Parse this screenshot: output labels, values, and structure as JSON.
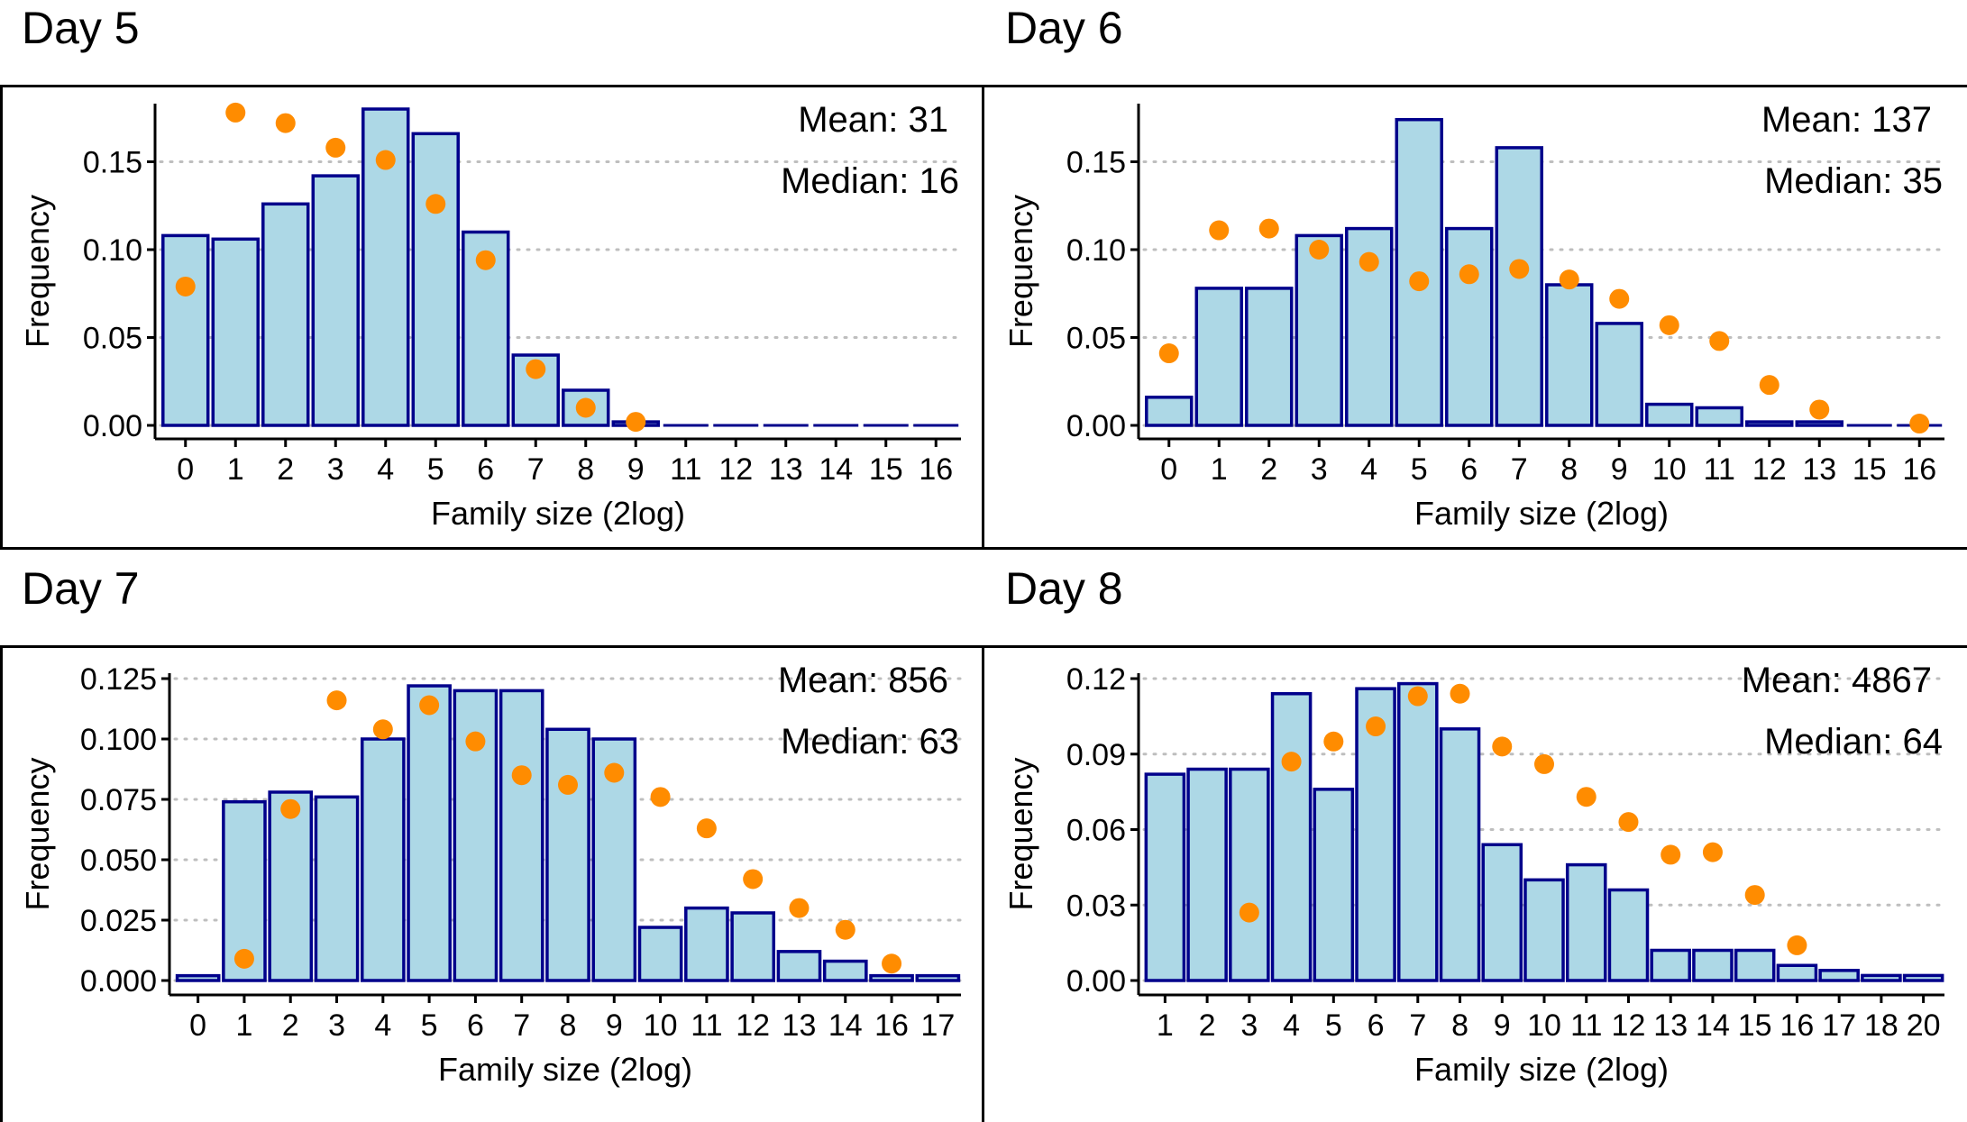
{
  "colors": {
    "bar_fill": "#add8e6",
    "bar_stroke": "#00008b",
    "point": "#ff8c00",
    "grid": "#bebebe",
    "frame": "#000000"
  },
  "chart_data": [
    {
      "type": "bar",
      "title": "Day 5",
      "xlabel": "Family size (2log)",
      "ylabel": "Frequency",
      "categories": [
        "0",
        "1",
        "2",
        "3",
        "4",
        "5",
        "6",
        "7",
        "8",
        "9",
        "11",
        "12",
        "13",
        "14",
        "15",
        "16"
      ],
      "series": [
        {
          "kind": "bar",
          "values": [
            0.108,
            0.106,
            0.126,
            0.142,
            0.18,
            0.166,
            0.11,
            0.04,
            0.02,
            0.002,
            0,
            0,
            0,
            0,
            0,
            0
          ]
        },
        {
          "kind": "point",
          "values": [
            0.079,
            0.178,
            0.172,
            0.158,
            0.151,
            0.126,
            0.094,
            0.032,
            0.01,
            0.002,
            null,
            null,
            null,
            null,
            null,
            null
          ]
        }
      ],
      "ylim": [
        0,
        0.18
      ],
      "yticks": [
        "0.00",
        "0.05",
        "0.10",
        "0.15"
      ],
      "ytick_values": [
        0,
        0.05,
        0.1,
        0.15
      ],
      "grid": true,
      "annotations": [
        "Mean: 31",
        "Median: 16"
      ]
    },
    {
      "type": "bar",
      "title": "Day 6",
      "xlabel": "Family size (2log)",
      "ylabel": "Frequency",
      "categories": [
        "0",
        "1",
        "2",
        "3",
        "4",
        "5",
        "6",
        "7",
        "8",
        "9",
        "10",
        "11",
        "12",
        "13",
        "15",
        "16"
      ],
      "series": [
        {
          "kind": "bar",
          "values": [
            0.016,
            0.078,
            0.078,
            0.108,
            0.112,
            0.174,
            0.112,
            0.158,
            0.08,
            0.058,
            0.012,
            0.01,
            0.002,
            0.002,
            0,
            0
          ]
        },
        {
          "kind": "point",
          "values": [
            0.041,
            0.111,
            0.112,
            0.1,
            0.093,
            0.082,
            0.086,
            0.089,
            0.083,
            0.072,
            0.057,
            0.048,
            0.023,
            0.009,
            null,
            0.001
          ]
        }
      ],
      "ylim": [
        0,
        0.18
      ],
      "yticks": [
        "0.00",
        "0.05",
        "0.10",
        "0.15"
      ],
      "ytick_values": [
        0,
        0.05,
        0.1,
        0.15
      ],
      "grid": true,
      "annotations": [
        "Mean: 137",
        "Median: 35"
      ]
    },
    {
      "type": "bar",
      "title": "Day 7",
      "xlabel": "Family size (2log)",
      "ylabel": "Frequency",
      "categories": [
        "0",
        "1",
        "2",
        "3",
        "4",
        "5",
        "6",
        "7",
        "8",
        "9",
        "10",
        "11",
        "12",
        "13",
        "14",
        "16",
        "17"
      ],
      "series": [
        {
          "kind": "bar",
          "values": [
            0.002,
            0.074,
            0.078,
            0.076,
            0.1,
            0.122,
            0.12,
            0.12,
            0.104,
            0.1,
            0.022,
            0.03,
            0.028,
            0.012,
            0.008,
            0.002,
            0.002
          ]
        },
        {
          "kind": "point",
          "values": [
            null,
            0.009,
            0.071,
            0.116,
            0.104,
            0.114,
            0.099,
            0.085,
            0.081,
            0.086,
            0.076,
            0.063,
            0.042,
            0.03,
            0.021,
            0.007,
            null
          ]
        }
      ],
      "ylim": [
        0,
        0.125
      ],
      "yticks": [
        "0.000",
        "0.025",
        "0.050",
        "0.075",
        "0.100",
        "0.125"
      ],
      "ytick_values": [
        0,
        0.025,
        0.05,
        0.075,
        0.1,
        0.125
      ],
      "grid": true,
      "annotations": [
        "Mean: 856",
        "Median: 63"
      ]
    },
    {
      "type": "bar",
      "title": "Day 8",
      "xlabel": "Family size (2log)",
      "ylabel": "Frequency",
      "categories": [
        "1",
        "2",
        "3",
        "4",
        "5",
        "6",
        "7",
        "8",
        "9",
        "10",
        "11",
        "12",
        "13",
        "14",
        "15",
        "16",
        "17",
        "18",
        "20"
      ],
      "series": [
        {
          "kind": "bar",
          "values": [
            0.082,
            0.084,
            0.084,
            0.114,
            0.076,
            0.116,
            0.118,
            0.1,
            0.054,
            0.04,
            0.046,
            0.036,
            0.012,
            0.012,
            0.012,
            0.006,
            0.004,
            0.002,
            0.002
          ]
        },
        {
          "kind": "point",
          "values": [
            null,
            null,
            0.027,
            0.087,
            0.095,
            0.101,
            0.113,
            0.114,
            0.093,
            0.086,
            0.073,
            0.063,
            0.05,
            0.051,
            0.034,
            0.014,
            null,
            null,
            null
          ]
        }
      ],
      "ylim": [
        0,
        0.12
      ],
      "yticks": [
        "0.00",
        "0.03",
        "0.06",
        "0.09",
        "0.12"
      ],
      "ytick_values": [
        0,
        0.03,
        0.06,
        0.09,
        0.12
      ],
      "grid": true,
      "annotations": [
        "Mean: 4867",
        "Median: 64"
      ]
    }
  ]
}
